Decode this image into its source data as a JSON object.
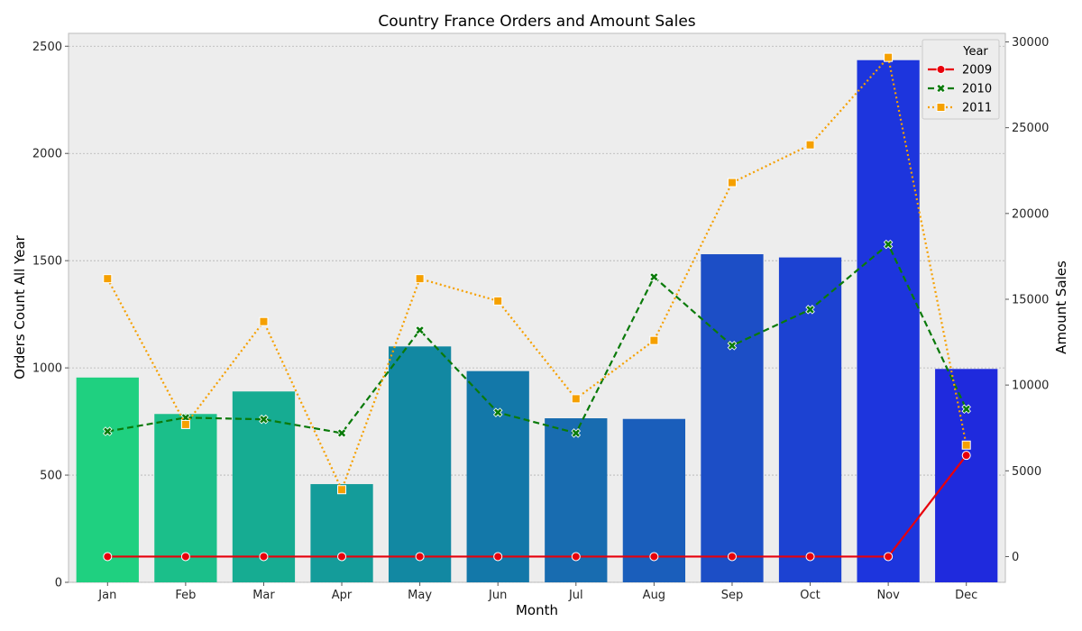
{
  "chart_data": {
    "type": "bar",
    "title": "Country France Orders and Amount Sales",
    "xlabel": "Month",
    "ylabel": "Orders Count All Year",
    "y2label": "Amount Sales",
    "categories": [
      "Jan",
      "Feb",
      "Mar",
      "Apr",
      "May",
      "Jun",
      "Jul",
      "Aug",
      "Sep",
      "Oct",
      "Nov",
      "Dec"
    ],
    "bars": {
      "axis": "left",
      "ylim": [
        0,
        2560
      ],
      "yticks": [
        0,
        500,
        1000,
        1500,
        2000,
        2500
      ],
      "values": [
        955,
        785,
        890,
        458,
        1100,
        985,
        765,
        762,
        1530,
        1515,
        2435,
        995
      ],
      "colors": [
        "#1fd080",
        "#1bbf8a",
        "#16ac92",
        "#149c9a",
        "#1288a2",
        "#1378a9",
        "#186cb0",
        "#1a5ebb",
        "#1c4ec6",
        "#1c42d2",
        "#1d35dd",
        "#1f2add"
      ]
    },
    "lines": {
      "axis": "right",
      "ylim": [
        -1500,
        30500
      ],
      "yticks": [
        0,
        5000,
        10000,
        15000,
        20000,
        25000,
        30000
      ],
      "legend_title": "Year",
      "legend_position": "top-right",
      "series": [
        {
          "name": "2009",
          "color": "#e8000b",
          "dash": "solid",
          "marker": "circle",
          "values": [
            0,
            0,
            0,
            0,
            0,
            0,
            0,
            0,
            0,
            0,
            0,
            5900
          ]
        },
        {
          "name": "2010",
          "color": "#0a7a0a",
          "dash": "dashed",
          "marker": "x",
          "values": [
            7300,
            8100,
            8000,
            7200,
            13200,
            8400,
            7200,
            16300,
            12300,
            14400,
            18200,
            8600
          ]
        },
        {
          "name": "2011",
          "color": "#f5a000",
          "dash": "dotted",
          "marker": "square",
          "values": [
            16200,
            7700,
            13700,
            3900,
            16200,
            14900,
            9200,
            12600,
            21800,
            24000,
            29100,
            6500
          ]
        }
      ]
    },
    "grid": true,
    "background": "#ededed"
  }
}
